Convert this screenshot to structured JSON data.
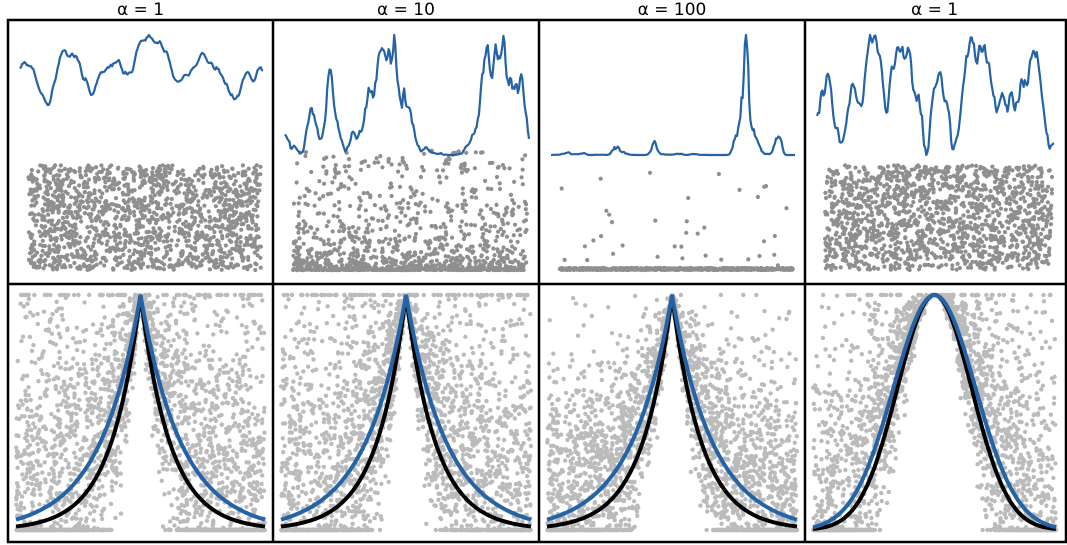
{
  "colors": {
    "signal": "#2463a6",
    "points": "#8f8f8f",
    "target_curve": "#000000",
    "frame": "#000000"
  },
  "chart_data": [
    {
      "type": "line",
      "title": "α = 1",
      "alpha": 1,
      "kernel": "exponential",
      "top_panel": {
        "signal": "smooth random process",
        "scatter": "uniform"
      },
      "bottom_panel": {
        "series": [
          "empirical correlation (blue)",
          "target kernel (black)",
          "samples (gray)"
        ]
      }
    },
    {
      "type": "line",
      "title": "α = 10",
      "alpha": 10,
      "kernel": "exponential",
      "top_panel": {
        "signal": "spiky random process",
        "scatter": "concentrated near bottom"
      },
      "bottom_panel": {
        "series": [
          "empirical correlation (blue)",
          "target kernel (black)",
          "samples (gray)"
        ]
      }
    },
    {
      "type": "line",
      "title": "α = 100",
      "alpha": 100,
      "kernel": "exponential",
      "top_panel": {
        "signal": "very spiky random process",
        "scatter": "sparse, mostly at bottom"
      },
      "bottom_panel": {
        "series": [
          "empirical correlation (blue)",
          "target kernel (black)",
          "samples (gray)"
        ]
      }
    },
    {
      "type": "line",
      "title": "α = 1",
      "alpha": 1,
      "kernel": "gaussian",
      "top_panel": {
        "signal": "smooth random process",
        "scatter": "uniform"
      },
      "bottom_panel": {
        "series": [
          "empirical correlation (blue)",
          "target kernel (black)",
          "samples (gray)"
        ]
      }
    }
  ]
}
